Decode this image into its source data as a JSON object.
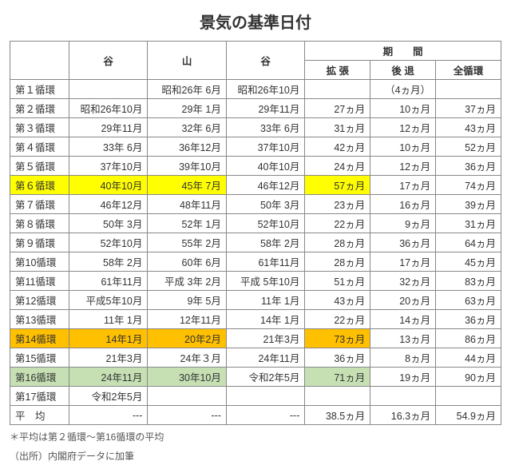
{
  "title": "景気の基準日付",
  "headers": {
    "tani1": "谷",
    "yama": "山",
    "tani2": "谷",
    "kikan": "期　　間",
    "kakucho": "拡 張",
    "koutai": "後 退",
    "zenjunkan": "全循環"
  },
  "rows": [
    {
      "label": "第１循環",
      "t1": "",
      "y": "昭和26年 6月",
      "t2": "昭和26年10月",
      "kak": "",
      "kou": "（4ヵ月）",
      "zen": "",
      "hl": null
    },
    {
      "label": "第２循環",
      "t1": "昭和26年10月",
      "y": "29年 1月",
      "t2": "29年11月",
      "kak": "27ヵ月",
      "kou": "10ヵ月",
      "zen": "37ヵ月",
      "hl": null
    },
    {
      "label": "第３循環",
      "t1": "29年11月",
      "y": "32年 6月",
      "t2": "33年 6月",
      "kak": "31ヵ月",
      "kou": "12ヵ月",
      "zen": "43ヵ月",
      "hl": null
    },
    {
      "label": "第４循環",
      "t1": "33年 6月",
      "y": "36年12月",
      "t2": "37年10月",
      "kak": "42ヵ月",
      "kou": "10ヵ月",
      "zen": "52ヵ月",
      "hl": null
    },
    {
      "label": "第５循環",
      "t1": "37年10月",
      "y": "39年10月",
      "t2": "40年10月",
      "kak": "24ヵ月",
      "kou": "12ヵ月",
      "zen": "36ヵ月",
      "hl": null
    },
    {
      "label": "第６循環",
      "t1": "40年10月",
      "y": "45年 7月",
      "t2": "46年12月",
      "kak": "57ヵ月",
      "kou": "17ヵ月",
      "zen": "74ヵ月",
      "hl": "yellow"
    },
    {
      "label": "第７循環",
      "t1": "46年12月",
      "y": "48年11月",
      "t2": "50年 3月",
      "kak": "23ヵ月",
      "kou": "16ヵ月",
      "zen": "39ヵ月",
      "hl": null
    },
    {
      "label": "第８循環",
      "t1": "50年 3月",
      "y": "52年 1月",
      "t2": "52年10月",
      "kak": "22ヵ月",
      "kou": "9ヵ月",
      "zen": "31ヵ月",
      "hl": null
    },
    {
      "label": "第９循環",
      "t1": "52年10月",
      "y": "55年 2月",
      "t2": "58年 2月",
      "kak": "28ヵ月",
      "kou": "36ヵ月",
      "zen": "64ヵ月",
      "hl": null
    },
    {
      "label": "第10循環",
      "t1": "58年 2月",
      "y": "60年 6月",
      "t2": "61年11月",
      "kak": "28ヵ月",
      "kou": "17ヵ月",
      "zen": "45ヵ月",
      "hl": null
    },
    {
      "label": "第11循環",
      "t1": "61年11月",
      "y": "平成 3年 2月",
      "t2": "平成 5年10月",
      "kak": "51ヵ月",
      "kou": "32ヵ月",
      "zen": "83ヵ月",
      "hl": null
    },
    {
      "label": "第12循環",
      "t1": "平成5年10月",
      "y": "9年 5月",
      "t2": "11年 1月",
      "kak": "43ヵ月",
      "kou": "20ヵ月",
      "zen": "63ヵ月",
      "hl": null
    },
    {
      "label": "第13循環",
      "t1": "11年 1月",
      "y": "12年11月",
      "t2": "14年 1月",
      "kak": "22ヵ月",
      "kou": "14ヵ月",
      "zen": "36ヵ月",
      "hl": null
    },
    {
      "label": "第14循環",
      "t1": "14年1月",
      "y": "20年2月",
      "t2": "21年3月",
      "kak": "73ヵ月",
      "kou": "13ヵ月",
      "zen": "86ヵ月",
      "hl": "orange"
    },
    {
      "label": "第15循環",
      "t1": "21年3月",
      "y": "24年３月",
      "t2": "24年11月",
      "kak": "36ヵ月",
      "kou": "8ヵ月",
      "zen": "44ヵ月",
      "hl": null
    },
    {
      "label": "第16循環",
      "t1": "24年11月",
      "y": "30年10月",
      "t2": "令和2年5月",
      "kak": "71ヵ月",
      "kou": "19ヵ月",
      "zen": "90ヵ月",
      "hl": "green"
    },
    {
      "label": "第17循環",
      "t1": "令和2年5月",
      "y": "",
      "t2": "",
      "kak": "",
      "kou": "",
      "zen": "",
      "hl": null
    }
  ],
  "avg": {
    "label": "平　均",
    "t1": "---",
    "y": "---",
    "t2": "---",
    "kak": "38.5ヵ月",
    "kou": "16.3ヵ月",
    "zen": "54.9ヵ月"
  },
  "footnote1": "＊平均は第２循環～第16循環の平均",
  "footnote2": "（出所）内閣府データに加筆",
  "colors": {
    "yellow": "#ffff00",
    "orange": "#ffc000",
    "green": "#c6e0b4"
  }
}
